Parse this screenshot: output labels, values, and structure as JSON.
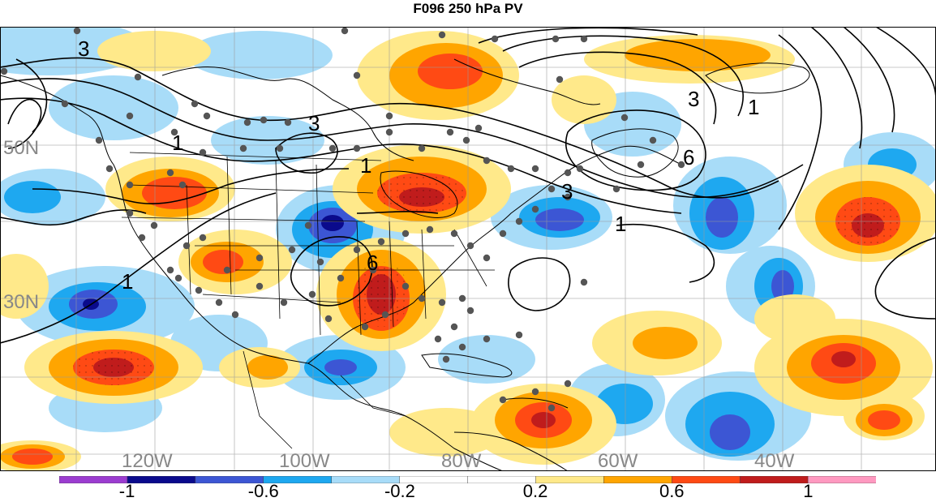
{
  "title": "F096 250 hPa PV",
  "map": {
    "lat_labels": [
      "50N",
      "30N"
    ],
    "lon_labels": [
      "120W",
      "100W",
      "80W",
      "60W",
      "40W"
    ],
    "contour_labels": [
      "3",
      "3",
      "3",
      "1",
      "6",
      "3",
      "1",
      "1",
      "1",
      "1",
      "6"
    ],
    "label_color": "#888888"
  },
  "colorbar": {
    "colors": [
      "#9b3cd0",
      "#0a0a8c",
      "#3c56d4",
      "#1ea8f0",
      "#a8dcf8",
      "#ffffff",
      "#ffffff",
      "#ffe98a",
      "#ffa500",
      "#ff4a14",
      "#c01c1c",
      "#ff99c0"
    ],
    "tick_labels": [
      "-1",
      "-0.6",
      "-0.2",
      "0.2",
      "0.6",
      "1"
    ]
  }
}
